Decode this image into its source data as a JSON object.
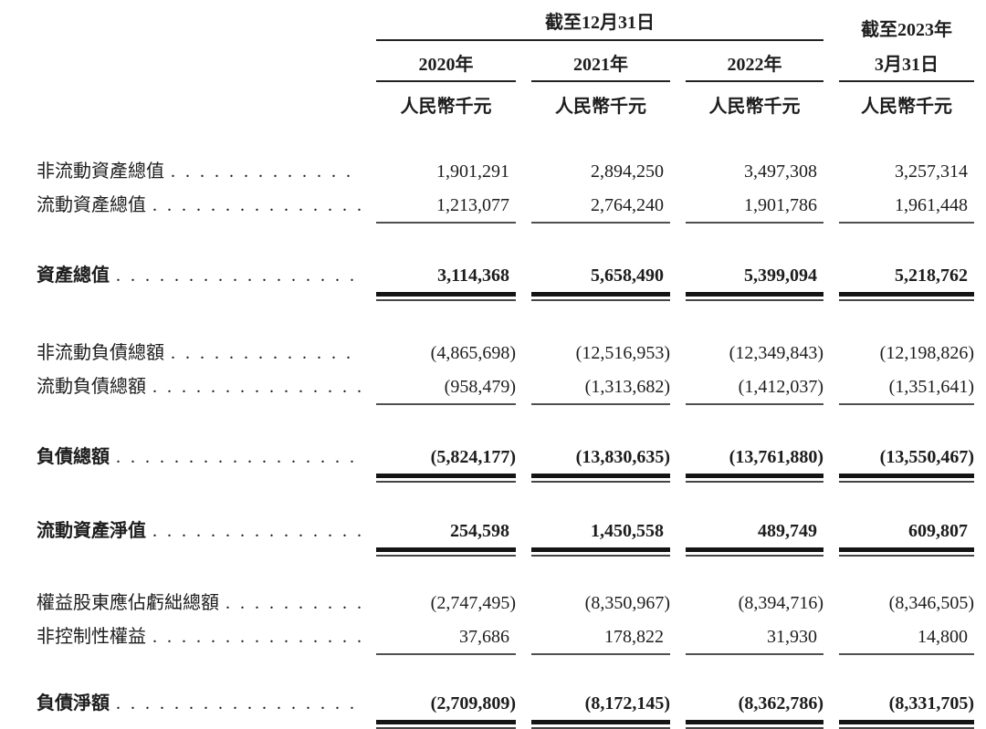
{
  "page": {
    "background_color": "#ffffff",
    "text_color": "#1d1d1d",
    "rule_color": "#141414"
  },
  "table": {
    "header": {
      "period_group": "截至12月31日",
      "period_2023_line1": "截至2023年",
      "period_2023_line2": "3月31日",
      "years": [
        "2020年",
        "2021年",
        "2022年"
      ],
      "units": [
        "人民幣千元",
        "人民幣千元",
        "人民幣千元",
        "人民幣千元"
      ]
    },
    "rows": [
      {
        "label": "非流動資產總值",
        "values": [
          "1,901,291",
          "2,894,250",
          "3,497,308",
          "3,257,314"
        ]
      },
      {
        "label": "流動資產總值",
        "values": [
          "1,213,077",
          "2,764,240",
          "1,901,786",
          "1,961,448"
        ]
      },
      {
        "label": "資產總值",
        "values": [
          "3,114,368",
          "5,658,490",
          "5,399,094",
          "5,218,762"
        ]
      },
      {
        "label": "非流動負債總額",
        "values": [
          "(4,865,698)",
          "(12,516,953)",
          "(12,349,843)",
          "(12,198,826)"
        ]
      },
      {
        "label": "流動負債總額",
        "values": [
          "(958,479)",
          "(1,313,682)",
          "(1,412,037)",
          "(1,351,641)"
        ]
      },
      {
        "label": "負債總額",
        "values": [
          "(5,824,177)",
          "(13,830,635)",
          "(13,761,880)",
          "(13,550,467)"
        ]
      },
      {
        "label": "流動資產淨值",
        "values": [
          "254,598",
          "1,450,558",
          "489,749",
          "609,807"
        ]
      },
      {
        "label": "權益股東應佔虧絀總額",
        "values": [
          "(2,747,495)",
          "(8,350,967)",
          "(8,394,716)",
          "(8,346,505)"
        ]
      },
      {
        "label": "非控制性權益",
        "values": [
          "37,686",
          "178,822",
          "31,930",
          "14,800"
        ]
      },
      {
        "label": "負債淨額",
        "values": [
          "(2,709,809)",
          "(8,172,145)",
          "(8,362,786)",
          "(8,331,705)"
        ]
      }
    ]
  }
}
